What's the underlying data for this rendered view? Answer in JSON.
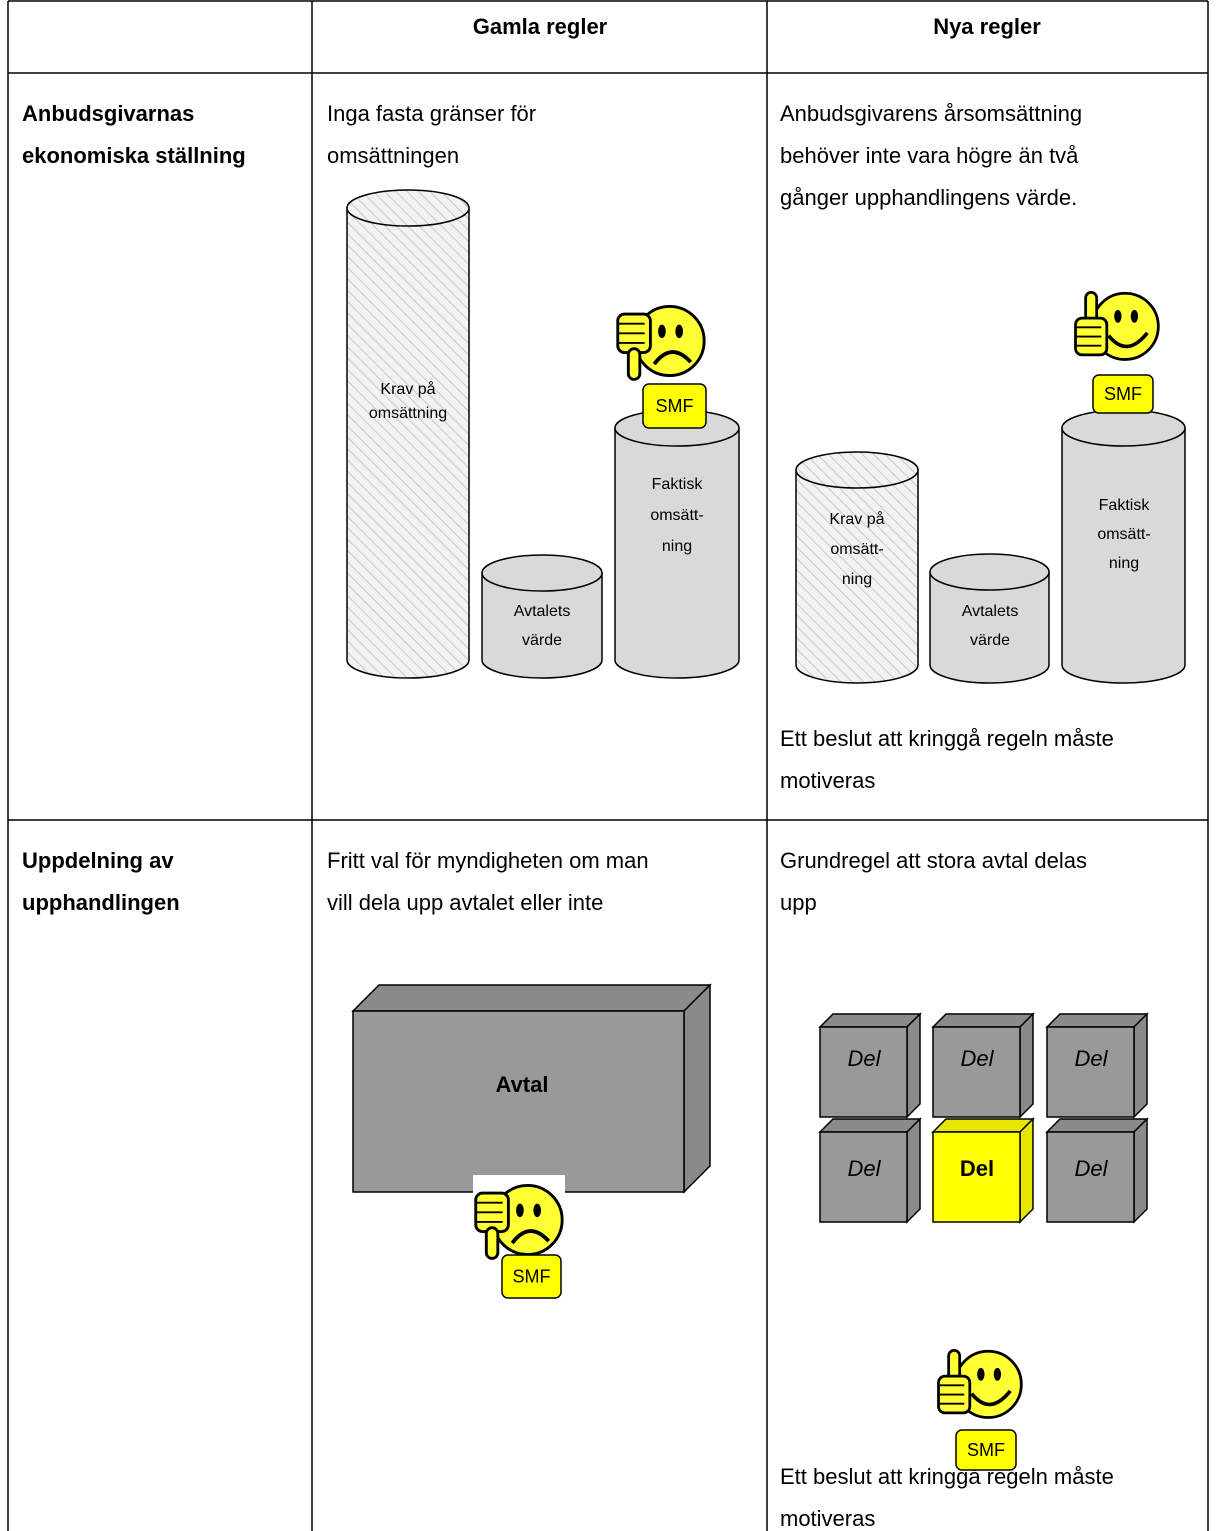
{
  "header": {
    "old": "Gamla regler",
    "new": "Nya regler"
  },
  "rows": [
    {
      "label": [
        "Anbudsgivarnas",
        "ekonomiska ställning"
      ],
      "old": {
        "text": [
          "Inga fasta gränser för",
          "omsättningen"
        ],
        "requirement": [
          "Krav på",
          "omsättning"
        ],
        "contract_value": [
          "Avtalets",
          "värde"
        ],
        "actual": [
          "Faktisk",
          "omsätt-",
          "ning"
        ],
        "badge": "SMF"
      },
      "new": {
        "text": [
          "Anbudsgivarens årsomsättning",
          "behöver inte vara högre än två",
          "gånger upphandlingens värde."
        ],
        "requirement": [
          "Krav på",
          "omsätt-",
          "ning"
        ],
        "contract_value": [
          "Avtalets",
          "värde"
        ],
        "actual": [
          "Faktisk",
          "omsätt-",
          "ning"
        ],
        "badge": "SMF",
        "note": [
          "Ett beslut att kringgå regeln måste",
          "motiveras"
        ]
      }
    },
    {
      "label": [
        "Uppdelning av",
        "upphandlingen"
      ],
      "old": {
        "text": [
          "Fritt val för myndigheten om man",
          "vill dela upp avtalet eller inte"
        ],
        "contract": "Avtal",
        "badge": "SMF"
      },
      "new": {
        "text": [
          "Grundregel att stora avtal delas",
          "upp"
        ],
        "parts": [
          "Del",
          "Del",
          "Del",
          "Del",
          "Del",
          "Del"
        ],
        "badge": "SMF",
        "note": [
          "Ett beslut att kringgå regeln måste",
          "motiveras"
        ]
      }
    }
  ]
}
